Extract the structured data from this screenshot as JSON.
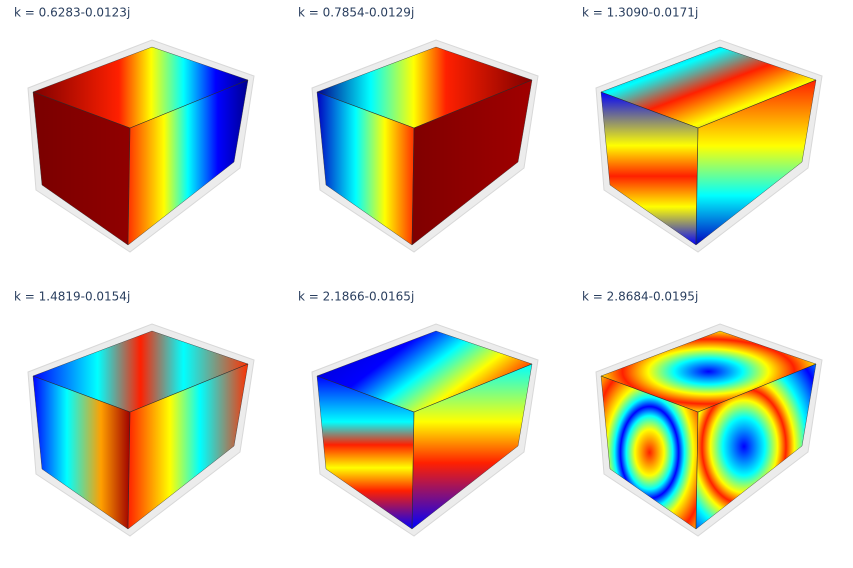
{
  "panels": [
    {
      "title": "k = 0.6283-0.0123j"
    },
    {
      "title": "k = 0.7854-0.0129j"
    },
    {
      "title": "k = 1.3090-0.0171j"
    },
    {
      "title": "k = 1.4819-0.0154j"
    },
    {
      "title": "k = 2.1866-0.0165j"
    },
    {
      "title": "k = 2.8684-0.0195j"
    }
  ]
}
